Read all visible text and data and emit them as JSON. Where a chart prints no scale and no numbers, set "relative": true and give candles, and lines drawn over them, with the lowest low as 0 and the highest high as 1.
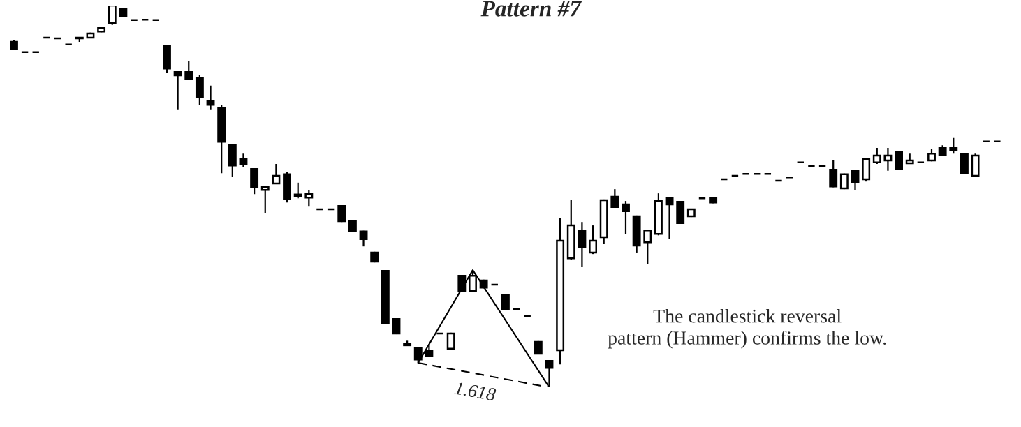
{
  "chart_data": {
    "type": "candlestick",
    "title": "Pattern #7",
    "relative": true,
    "categories": [
      null,
      null,
      null,
      null,
      null,
      null,
      null,
      null,
      null,
      null,
      null,
      null,
      null,
      null,
      null,
      null,
      null,
      null,
      null,
      null,
      null,
      null,
      null,
      null,
      null,
      null,
      null,
      null,
      null,
      null,
      null,
      null,
      null,
      null,
      null,
      null,
      null,
      null,
      null,
      null,
      null,
      null,
      null,
      null,
      null,
      null,
      null,
      null,
      null,
      null,
      null,
      null,
      null,
      null,
      null,
      null,
      null,
      null,
      null,
      null,
      null,
      null,
      null,
      null,
      null,
      null,
      null,
      null,
      null,
      null,
      null,
      null,
      null,
      null,
      null,
      null,
      null,
      null,
      null,
      null,
      null,
      null,
      null,
      null,
      null,
      null,
      null,
      null,
      null,
      null,
      null
    ],
    "ohlc": [
      [
        0.905,
        0.909,
        0.885,
        0.887
      ],
      [
        0.878,
        0.878,
        0.878,
        0.878
      ],
      [
        0.878,
        0.878,
        0.878,
        0.878
      ],
      [
        0.916,
        0.916,
        0.916,
        0.916
      ],
      [
        0.914,
        0.914,
        0.914,
        0.914
      ],
      [
        0.898,
        0.898,
        0.898,
        0.898
      ],
      [
        0.916,
        0.916,
        0.905,
        0.914
      ],
      [
        0.916,
        0.929,
        0.914,
        0.927
      ],
      [
        0.932,
        0.943,
        0.93,
        0.941
      ],
      [
        0.954,
        1.0,
        0.949,
        1.0
      ],
      [
        0.991,
        0.993,
        0.969,
        0.971
      ],
      [
        0.962,
        0.962,
        0.962,
        0.962
      ],
      [
        0.963,
        0.963,
        0.963,
        0.963
      ],
      [
        0.962,
        0.962,
        0.962,
        0.962
      ],
      [
        0.894,
        0.896,
        0.823,
        0.835
      ],
      [
        0.826,
        0.828,
        0.728,
        0.817
      ],
      [
        0.826,
        0.855,
        0.806,
        0.808
      ],
      [
        0.81,
        0.817,
        0.74,
        0.759
      ],
      [
        0.749,
        0.79,
        0.728,
        0.74
      ],
      [
        0.731,
        0.74,
        0.561,
        0.643
      ],
      [
        0.634,
        0.636,
        0.552,
        0.581
      ],
      [
        0.598,
        0.612,
        0.576,
        0.585
      ],
      [
        0.572,
        0.574,
        0.506,
        0.525
      ],
      [
        0.517,
        0.527,
        0.457,
        0.525
      ],
      [
        0.534,
        0.585,
        0.532,
        0.554
      ],
      [
        0.558,
        0.565,
        0.484,
        0.494
      ],
      [
        0.505,
        0.536,
        0.495,
        0.501
      ],
      [
        0.497,
        0.516,
        0.475,
        0.506
      ],
      [
        0.466,
        0.466,
        0.466,
        0.466
      ],
      [
        0.466,
        0.466,
        0.466,
        0.466
      ],
      [
        0.475,
        0.477,
        0.433,
        0.435
      ],
      [
        0.435,
        0.437,
        0.406,
        0.408
      ],
      [
        0.408,
        0.41,
        0.369,
        0.388
      ],
      [
        0.353,
        0.355,
        0.327,
        0.329
      ],
      [
        0.305,
        0.307,
        0.166,
        0.168
      ],
      [
        0.179,
        0.181,
        0.139,
        0.141
      ],
      [
        0.113,
        0.122,
        0.108,
        0.11
      ],
      [
        0.104,
        0.106,
        0.064,
        0.073
      ],
      [
        0.095,
        0.113,
        0.08,
        0.082
      ],
      [
        0.141,
        0.141,
        0.141,
        0.141
      ],
      [
        0.101,
        0.143,
        0.099,
        0.141
      ],
      [
        0.292,
        0.294,
        0.25,
        0.252
      ],
      [
        0.252,
        0.307,
        0.25,
        0.292
      ],
      [
        0.28,
        0.282,
        0.259,
        0.261
      ],
      [
        0.269,
        0.269,
        0.269,
        0.269
      ],
      [
        0.243,
        0.245,
        0.203,
        0.205
      ],
      [
        0.205,
        0.205,
        0.205,
        0.205
      ],
      [
        0.186,
        0.186,
        0.186,
        0.186
      ],
      [
        0.119,
        0.121,
        0.086,
        0.088
      ],
      [
        0.069,
        0.071,
        0.0,
        0.051
      ],
      [
        0.097,
        0.444,
        0.06,
        0.384
      ],
      [
        0.338,
        0.49,
        0.333,
        0.424
      ],
      [
        0.411,
        0.433,
        0.316,
        0.366
      ],
      [
        0.353,
        0.424,
        0.349,
        0.384
      ],
      [
        0.393,
        0.492,
        0.375,
        0.49
      ],
      [
        0.499,
        0.519,
        0.47,
        0.472
      ],
      [
        0.479,
        0.488,
        0.402,
        0.461
      ],
      [
        0.448,
        0.45,
        0.353,
        0.371
      ],
      [
        0.38,
        0.413,
        0.322,
        0.411
      ],
      [
        0.402,
        0.508,
        0.398,
        0.488
      ],
      [
        0.497,
        0.499,
        0.389,
        0.479
      ],
      [
        0.486,
        0.488,
        0.428,
        0.43
      ],
      [
        0.448,
        0.468,
        0.446,
        0.466
      ],
      [
        0.495,
        0.495,
        0.495,
        0.495
      ],
      [
        0.497,
        0.499,
        0.482,
        0.484
      ],
      [
        0.545,
        0.545,
        0.545,
        0.545
      ],
      [
        0.554,
        0.554,
        0.554,
        0.554
      ],
      [
        0.559,
        0.559,
        0.559,
        0.559
      ],
      [
        0.559,
        0.559,
        0.559,
        0.559
      ],
      [
        0.559,
        0.559,
        0.559,
        0.559
      ],
      [
        0.541,
        0.541,
        0.541,
        0.541
      ],
      [
        0.55,
        0.55,
        0.55,
        0.55
      ],
      [
        0.589,
        0.589,
        0.589,
        0.589
      ],
      [
        0.579,
        0.579,
        0.579,
        0.579
      ],
      [
        0.579,
        0.579,
        0.579,
        0.579
      ],
      [
        0.57,
        0.594,
        0.524,
        0.526
      ],
      [
        0.521,
        0.56,
        0.519,
        0.558
      ],
      [
        0.567,
        0.569,
        0.517,
        0.536
      ],
      [
        0.545,
        0.6,
        0.539,
        0.598
      ],
      [
        0.589,
        0.627,
        0.585,
        0.607
      ],
      [
        0.594,
        0.627,
        0.567,
        0.607
      ],
      [
        0.616,
        0.618,
        0.57,
        0.572
      ],
      [
        0.587,
        0.612,
        0.585,
        0.594
      ],
      [
        0.589,
        0.589,
        0.589,
        0.589
      ],
      [
        0.594,
        0.625,
        0.592,
        0.612
      ],
      [
        0.627,
        0.634,
        0.607,
        0.609
      ],
      [
        0.627,
        0.653,
        0.612,
        0.622
      ],
      [
        0.612,
        0.614,
        0.559,
        0.561
      ],
      [
        0.554,
        0.612,
        0.552,
        0.607
      ],
      [
        0.644,
        0.644,
        0.644,
        0.644
      ],
      [
        0.644,
        0.644,
        0.644,
        0.644
      ]
    ],
    "series": [
      {
        "type": "line",
        "color": "#000000",
        "line_style": "solid",
        "values": [
          null,
          null,
          null,
          null,
          null,
          null,
          null,
          null,
          null,
          null,
          null,
          null,
          null,
          null,
          null,
          null,
          null,
          null,
          null,
          null,
          null,
          null,
          null,
          null,
          null,
          null,
          null,
          null,
          null,
          null,
          null,
          null,
          null,
          null,
          null,
          null,
          null,
          0.064,
          null,
          null,
          null,
          null,
          0.307,
          null,
          null,
          null,
          null,
          null,
          null,
          0.0,
          null,
          null,
          null,
          null,
          null,
          null,
          null,
          null,
          null,
          null,
          null,
          null,
          null,
          null,
          null,
          null,
          null,
          null,
          null,
          null,
          null,
          null,
          null,
          null,
          null,
          null,
          null,
          null,
          null,
          null,
          null,
          null,
          null,
          null,
          null,
          null,
          null,
          null,
          null,
          null,
          null
        ]
      },
      {
        "type": "line",
        "color": "#000000",
        "line_style": "dashed",
        "values": [
          null,
          null,
          null,
          null,
          null,
          null,
          null,
          null,
          null,
          null,
          null,
          null,
          null,
          null,
          null,
          null,
          null,
          null,
          null,
          null,
          null,
          null,
          null,
          null,
          null,
          null,
          null,
          null,
          null,
          null,
          null,
          null,
          null,
          null,
          null,
          null,
          null,
          0.064,
          null,
          null,
          null,
          null,
          null,
          null,
          null,
          null,
          null,
          null,
          null,
          0.0,
          null,
          null,
          null,
          null,
          null,
          null,
          null,
          null,
          null,
          null,
          null,
          null,
          null,
          null,
          null,
          null,
          null,
          null,
          null,
          null,
          null,
          null,
          null,
          null,
          null,
          null,
          null,
          null,
          null,
          null,
          null,
          null,
          null,
          null,
          null,
          null,
          null,
          null,
          null,
          null,
          null
        ]
      }
    ],
    "annotations": [
      "1.618",
      "The candlestick reversal\npattern (Hammer) confirms the low."
    ]
  }
}
